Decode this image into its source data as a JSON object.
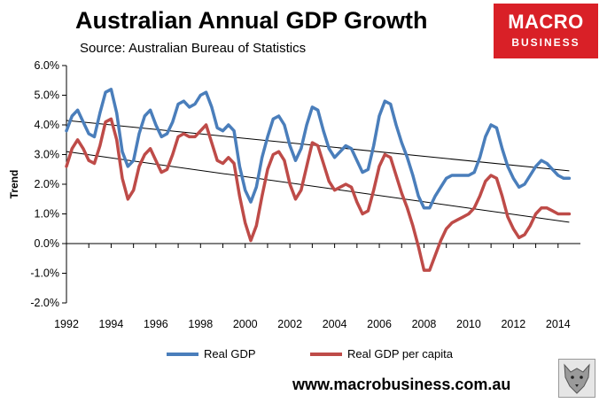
{
  "header": {
    "title": "Australian Annual GDP Growth",
    "subtitle": "Source: Australian Bureau of Statistics"
  },
  "logo": {
    "line1": "MACRO",
    "line2": "BUSINESS",
    "color": "#d92027"
  },
  "footer": {
    "url": "www.macrobusiness.com.au"
  },
  "icons": {
    "wolf": "wolf-logo-icon"
  },
  "chart_data": {
    "type": "line",
    "title": "Australian Annual GDP Growth",
    "subtitle": "Source: Australian Bureau of Statistics",
    "xlabel": "",
    "ylabel": "Trend",
    "xlim": [
      1992,
      2015
    ],
    "ylim": [
      -2.0,
      6.0
    ],
    "x_ticks": [
      "1992",
      "1994",
      "1996",
      "1998",
      "2000",
      "2002",
      "2004",
      "2006",
      "2008",
      "2010",
      "2012",
      "2014"
    ],
    "y_ticks": [
      "6.0%",
      "5.0%",
      "4.0%",
      "3.0%",
      "2.0%",
      "1.0%",
      "0.0%",
      "-1.0%",
      "-2.0%"
    ],
    "y_tick_values": [
      6,
      5,
      4,
      3,
      2,
      1,
      0,
      -1,
      -2
    ],
    "grid": false,
    "legend_position": "bottom",
    "series": [
      {
        "name": "Real GDP",
        "color": "#4a7ebb",
        "x": [
          1992.0,
          1992.25,
          1992.5,
          1992.75,
          1993.0,
          1993.25,
          1993.5,
          1993.75,
          1994.0,
          1994.25,
          1994.5,
          1994.75,
          1995.0,
          1995.25,
          1995.5,
          1995.75,
          1996.0,
          1996.25,
          1996.5,
          1996.75,
          1997.0,
          1997.25,
          1997.5,
          1997.75,
          1998.0,
          1998.25,
          1998.5,
          1998.75,
          1999.0,
          1999.25,
          1999.5,
          1999.75,
          2000.0,
          2000.25,
          2000.5,
          2000.75,
          2001.0,
          2001.25,
          2001.5,
          2001.75,
          2002.0,
          2002.25,
          2002.5,
          2002.75,
          2003.0,
          2003.25,
          2003.5,
          2003.75,
          2004.0,
          2004.25,
          2004.5,
          2004.75,
          2005.0,
          2005.25,
          2005.5,
          2005.75,
          2006.0,
          2006.25,
          2006.5,
          2006.75,
          2007.0,
          2007.25,
          2007.5,
          2007.75,
          2008.0,
          2008.25,
          2008.5,
          2008.75,
          2009.0,
          2009.25,
          2009.5,
          2009.75,
          2010.0,
          2010.25,
          2010.5,
          2010.75,
          2011.0,
          2011.25,
          2011.5,
          2011.75,
          2012.0,
          2012.25,
          2012.5,
          2012.75,
          2013.0,
          2013.25,
          2013.5,
          2013.75,
          2014.0,
          2014.25,
          2014.5
        ],
        "values": [
          3.8,
          4.3,
          4.5,
          4.1,
          3.7,
          3.6,
          4.4,
          5.1,
          5.2,
          4.4,
          3.1,
          2.6,
          2.8,
          3.7,
          4.3,
          4.5,
          4.0,
          3.6,
          3.7,
          4.1,
          4.7,
          4.8,
          4.6,
          4.7,
          5.0,
          5.1,
          4.6,
          3.9,
          3.8,
          4.0,
          3.8,
          2.6,
          1.8,
          1.4,
          1.9,
          2.9,
          3.6,
          4.2,
          4.3,
          4.0,
          3.3,
          2.8,
          3.2,
          4.0,
          4.6,
          4.5,
          3.8,
          3.2,
          2.9,
          3.1,
          3.3,
          3.2,
          2.8,
          2.4,
          2.5,
          3.3,
          4.3,
          4.8,
          4.7,
          4.0,
          3.4,
          2.9,
          2.3,
          1.6,
          1.2,
          1.2,
          1.6,
          1.9,
          2.2,
          2.3,
          2.3,
          2.3,
          2.3,
          2.4,
          2.9,
          3.6,
          4.0,
          3.9,
          3.2,
          2.6,
          2.2,
          1.9,
          2.0,
          2.3,
          2.6,
          2.8,
          2.7,
          2.5,
          2.3,
          2.2,
          2.2
        ]
      },
      {
        "name": "Real GDP per capita",
        "color": "#be4b48",
        "x": [
          1992.0,
          1992.25,
          1992.5,
          1992.75,
          1993.0,
          1993.25,
          1993.5,
          1993.75,
          1994.0,
          1994.25,
          1994.5,
          1994.75,
          1995.0,
          1995.25,
          1995.5,
          1995.75,
          1996.0,
          1996.25,
          1996.5,
          1996.75,
          1997.0,
          1997.25,
          1997.5,
          1997.75,
          1998.0,
          1998.25,
          1998.5,
          1998.75,
          1999.0,
          1999.25,
          1999.5,
          1999.75,
          2000.0,
          2000.25,
          2000.5,
          2000.75,
          2001.0,
          2001.25,
          2001.5,
          2001.75,
          2002.0,
          2002.25,
          2002.5,
          2002.75,
          2003.0,
          2003.25,
          2003.5,
          2003.75,
          2004.0,
          2004.25,
          2004.5,
          2004.75,
          2005.0,
          2005.25,
          2005.5,
          2005.75,
          2006.0,
          2006.25,
          2006.5,
          2006.75,
          2007.0,
          2007.25,
          2007.5,
          2007.75,
          2008.0,
          2008.25,
          2008.5,
          2008.75,
          2009.0,
          2009.25,
          2009.5,
          2009.75,
          2010.0,
          2010.25,
          2010.5,
          2010.75,
          2011.0,
          2011.25,
          2011.5,
          2011.75,
          2012.0,
          2012.25,
          2012.5,
          2012.75,
          2013.0,
          2013.25,
          2013.5,
          2013.75,
          2014.0,
          2014.25,
          2014.5
        ],
        "values": [
          2.6,
          3.2,
          3.5,
          3.2,
          2.8,
          2.7,
          3.3,
          4.1,
          4.2,
          3.5,
          2.2,
          1.5,
          1.8,
          2.6,
          3.0,
          3.2,
          2.8,
          2.4,
          2.5,
          3.0,
          3.6,
          3.7,
          3.6,
          3.6,
          3.8,
          4.0,
          3.4,
          2.8,
          2.7,
          2.9,
          2.7,
          1.6,
          0.7,
          0.1,
          0.6,
          1.6,
          2.5,
          3.0,
          3.1,
          2.8,
          2.0,
          1.5,
          1.8,
          2.6,
          3.4,
          3.3,
          2.7,
          2.1,
          1.8,
          1.9,
          2.0,
          1.9,
          1.4,
          1.0,
          1.1,
          1.8,
          2.6,
          3.0,
          2.9,
          2.3,
          1.7,
          1.2,
          0.6,
          -0.1,
          -0.9,
          -0.9,
          -0.4,
          0.1,
          0.5,
          0.7,
          0.8,
          0.9,
          1.0,
          1.2,
          1.6,
          2.1,
          2.3,
          2.2,
          1.6,
          0.9,
          0.5,
          0.2,
          0.3,
          0.6,
          1.0,
          1.2,
          1.2,
          1.1,
          1.0,
          1.0,
          1.0
        ]
      }
    ],
    "trend_lines": [
      {
        "of": "Real GDP",
        "color": "#000000",
        "x": [
          1992.0,
          2014.5
        ],
        "y": [
          4.15,
          2.45
        ]
      },
      {
        "of": "Real GDP per capita",
        "color": "#000000",
        "x": [
          1992.0,
          2014.5
        ],
        "y": [
          3.1,
          0.72
        ]
      }
    ]
  }
}
